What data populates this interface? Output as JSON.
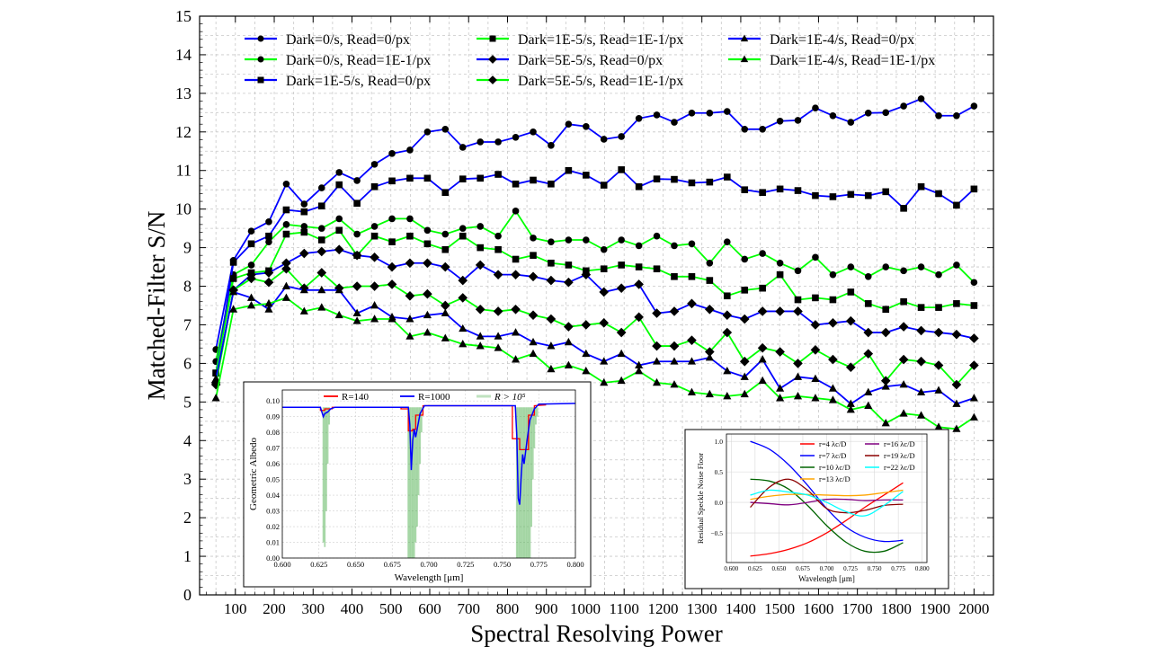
{
  "chart_data": [
    {
      "type": "line",
      "title": "",
      "xlabel": "Spectral Resolving Power",
      "ylabel": "Matched-Filter S/N",
      "xlim": [
        8,
        2050
      ],
      "ylim": [
        0,
        15
      ],
      "grid": true,
      "legend_placement": "top",
      "xticks": [
        100,
        200,
        300,
        400,
        500,
        600,
        700,
        800,
        900,
        1000,
        1100,
        1200,
        1300,
        1400,
        1500,
        1600,
        1700,
        1800,
        1900,
        2000
      ],
      "yticks": [
        0,
        1,
        2,
        3,
        4,
        5,
        6,
        7,
        8,
        9,
        10,
        11,
        12,
        13,
        14,
        15
      ],
      "x": [
        50,
        95,
        141,
        186,
        231,
        277,
        322,
        367,
        413,
        458,
        503,
        549,
        594,
        640,
        685,
        730,
        776,
        821,
        866,
        912,
        957,
        1002,
        1048,
        1093,
        1138,
        1184,
        1229,
        1274,
        1320,
        1365,
        1410,
        1456,
        1501,
        1547,
        1592,
        1637,
        1683,
        1728,
        1773,
        1819,
        1864,
        1909,
        1955,
        2000
      ],
      "series": [
        {
          "name": "Dark=0/s, Read=0/px",
          "color": "#0000ff",
          "marker": "circle",
          "values": [
            6.36,
            8.67,
            9.43,
            9.67,
            10.65,
            10.13,
            10.55,
            10.95,
            10.74,
            11.16,
            11.44,
            11.53,
            12.0,
            12.07,
            11.6,
            11.74,
            11.74,
            11.86,
            12.0,
            11.65,
            12.2,
            12.14,
            11.81,
            11.88,
            12.35,
            12.44,
            12.25,
            12.49,
            12.49,
            12.53,
            12.07,
            12.07,
            12.28,
            12.3,
            12.62,
            12.42,
            12.25,
            12.49,
            12.5,
            12.67,
            12.86,
            12.42,
            12.42,
            12.67
          ]
        },
        {
          "name": "Dark=0/s, Read=1E-1/px",
          "color": "#00ff00",
          "marker": "circle",
          "values": [
            6.05,
            8.3,
            8.55,
            9.15,
            9.6,
            9.55,
            9.5,
            9.75,
            9.35,
            9.55,
            9.75,
            9.75,
            9.45,
            9.35,
            9.5,
            9.55,
            9.3,
            9.95,
            9.25,
            9.15,
            9.2,
            9.2,
            8.95,
            9.2,
            9.05,
            9.3,
            9.05,
            9.1,
            8.6,
            9.15,
            8.7,
            8.85,
            8.6,
            8.4,
            8.75,
            8.3,
            8.5,
            8.25,
            8.5,
            8.4,
            8.5,
            8.3,
            8.55,
            8.1
          ]
        },
        {
          "name": "Dark=1E-5/s, Read=0/px",
          "color": "#0000ff",
          "marker": "square",
          "values": [
            5.75,
            8.62,
            9.1,
            9.3,
            9.98,
            9.93,
            10.08,
            10.63,
            10.15,
            10.58,
            10.73,
            10.8,
            10.8,
            10.43,
            10.78,
            10.8,
            10.9,
            10.65,
            10.75,
            10.65,
            11.0,
            10.88,
            10.62,
            11.02,
            10.58,
            10.78,
            10.77,
            10.68,
            10.7,
            10.83,
            10.5,
            10.43,
            10.52,
            10.48,
            10.35,
            10.32,
            10.38,
            10.35,
            10.45,
            10.02,
            10.58,
            10.4,
            10.1,
            10.52
          ]
        },
        {
          "name": "Dark=1E-5/s, Read=1E-1/px",
          "color": "#00ff00",
          "marker": "square",
          "values": [
            5.75,
            8.2,
            8.35,
            8.4,
            9.35,
            9.4,
            9.2,
            9.45,
            8.8,
            9.3,
            9.15,
            9.3,
            9.1,
            8.95,
            9.3,
            9.0,
            8.95,
            8.7,
            8.8,
            8.6,
            8.55,
            8.4,
            8.45,
            8.55,
            8.5,
            8.45,
            8.25,
            8.25,
            8.15,
            7.75,
            7.9,
            7.95,
            8.3,
            7.65,
            7.7,
            7.65,
            7.85,
            7.55,
            7.4,
            7.6,
            7.45,
            7.45,
            7.55,
            7.5
          ]
        },
        {
          "name": "Dark=5E-5/s, Read=0/px",
          "color": "#0000ff",
          "marker": "diamond",
          "values": [
            5.5,
            7.9,
            8.3,
            8.35,
            8.6,
            8.85,
            8.9,
            8.95,
            8.8,
            8.75,
            8.5,
            8.6,
            8.6,
            8.5,
            8.15,
            8.55,
            8.3,
            8.3,
            8.25,
            8.15,
            8.1,
            8.3,
            7.85,
            7.95,
            8.05,
            7.3,
            7.35,
            7.55,
            7.4,
            7.25,
            7.15,
            7.35,
            7.35,
            7.35,
            7.0,
            7.05,
            7.1,
            6.8,
            6.8,
            6.95,
            6.85,
            6.8,
            6.75,
            6.65
          ]
        },
        {
          "name": "Dark=5E-5/s, Read=1E-1/px",
          "color": "#00ff00",
          "marker": "diamond",
          "values": [
            5.45,
            7.9,
            8.2,
            8.1,
            8.45,
            7.95,
            8.35,
            7.95,
            8.0,
            8.0,
            8.05,
            7.75,
            7.8,
            7.5,
            7.7,
            7.4,
            7.35,
            7.4,
            7.25,
            7.15,
            6.95,
            7.0,
            7.05,
            6.8,
            7.2,
            6.45,
            6.45,
            6.6,
            6.3,
            6.8,
            6.05,
            6.4,
            6.3,
            6.0,
            6.35,
            6.1,
            5.9,
            6.25,
            5.55,
            6.1,
            6.05,
            5.95,
            5.45,
            5.95
          ]
        },
        {
          "name": "Dark=1E-4/s, Read=0/px",
          "color": "#0000ff",
          "marker": "triangle",
          "values": [
            5.6,
            7.85,
            7.7,
            7.4,
            8.0,
            7.9,
            7.9,
            7.9,
            7.3,
            7.5,
            7.2,
            7.15,
            7.25,
            7.3,
            6.9,
            6.7,
            6.7,
            6.8,
            6.55,
            6.45,
            6.55,
            6.25,
            6.05,
            6.25,
            5.95,
            6.05,
            6.05,
            6.05,
            6.15,
            5.8,
            5.65,
            6.1,
            5.35,
            5.65,
            5.6,
            5.35,
            4.95,
            5.25,
            5.4,
            5.45,
            5.25,
            5.3,
            4.95,
            5.1
          ]
        },
        {
          "name": "Dark=1E-4/s, Read=1E-1/px",
          "color": "#00ff00",
          "marker": "triangle",
          "values": [
            5.1,
            7.4,
            7.5,
            7.55,
            7.7,
            7.35,
            7.45,
            7.25,
            7.1,
            7.15,
            7.15,
            6.7,
            6.8,
            6.65,
            6.5,
            6.45,
            6.4,
            6.1,
            6.25,
            5.85,
            5.95,
            5.8,
            5.5,
            5.55,
            5.8,
            5.5,
            5.45,
            5.25,
            5.2,
            5.15,
            5.2,
            5.55,
            5.1,
            5.15,
            5.1,
            5.05,
            4.8,
            4.9,
            4.45,
            4.7,
            4.65,
            4.35,
            4.3,
            4.6
          ]
        }
      ]
    },
    {
      "type": "line",
      "title": "",
      "xlabel": "Wavelength [μm]",
      "ylabel": "Geometric Albedo",
      "xlim": [
        0.6,
        0.8
      ],
      "ylim": [
        0.0,
        0.107
      ],
      "grid": true,
      "legend_placement": "top",
      "xticks": [
        "0.600",
        "0.625",
        "0.650",
        "0.675",
        "0.700",
        "0.725",
        "0.750",
        "0.775",
        "0.800"
      ],
      "yticks": [
        "0.00",
        "0.01",
        "0.02",
        "0.03",
        "0.04",
        "0.05",
        "0.06",
        "0.07",
        "0.08",
        "0.09",
        "0.10"
      ],
      "series": [
        {
          "name": "R=140",
          "color": "#ff0000",
          "points": [
            [
              0.6,
              0.096
            ],
            [
              0.626,
              0.096
            ],
            [
              0.626,
              0.094
            ],
            [
              0.629,
              0.094
            ],
            [
              0.629,
              0.095
            ],
            [
              0.634,
              0.095
            ],
            [
              0.634,
              0.096
            ],
            [
              0.681,
              0.096
            ],
            [
              0.681,
              0.095
            ],
            [
              0.686,
              0.095
            ],
            [
              0.686,
              0.081
            ],
            [
              0.689,
              0.081
            ],
            [
              0.689,
              0.082
            ],
            [
              0.691,
              0.082
            ],
            [
              0.691,
              0.091
            ],
            [
              0.696,
              0.091
            ],
            [
              0.696,
              0.097
            ],
            [
              0.757,
              0.097
            ],
            [
              0.757,
              0.076
            ],
            [
              0.762,
              0.076
            ],
            [
              0.762,
              0.069
            ],
            [
              0.768,
              0.069
            ],
            [
              0.768,
              0.091
            ],
            [
              0.772,
              0.091
            ],
            [
              0.772,
              0.097
            ],
            [
              0.78,
              0.0975
            ]
          ]
        },
        {
          "name": "R=1000",
          "color": "#0000ff",
          "points": [
            [
              0.6,
              0.096
            ],
            [
              0.626,
              0.096
            ],
            [
              0.627,
              0.093
            ],
            [
              0.628,
              0.09
            ],
            [
              0.629,
              0.092
            ],
            [
              0.631,
              0.093
            ],
            [
              0.633,
              0.095
            ],
            [
              0.636,
              0.096
            ],
            [
              0.686,
              0.096
            ],
            [
              0.687,
              0.085
            ],
            [
              0.688,
              0.056
            ],
            [
              0.689,
              0.075
            ],
            [
              0.69,
              0.082
            ],
            [
              0.691,
              0.077
            ],
            [
              0.692,
              0.082
            ],
            [
              0.694,
              0.092
            ],
            [
              0.697,
              0.097
            ],
            [
              0.759,
              0.097
            ],
            [
              0.76,
              0.078
            ],
            [
              0.761,
              0.038
            ],
            [
              0.762,
              0.034
            ],
            [
              0.763,
              0.052
            ],
            [
              0.764,
              0.066
            ],
            [
              0.765,
              0.06
            ],
            [
              0.767,
              0.075
            ],
            [
              0.769,
              0.088
            ],
            [
              0.772,
              0.095
            ],
            [
              0.775,
              0.098
            ],
            [
              0.8,
              0.0985
            ]
          ]
        },
        {
          "name": "R > 10⁵",
          "color": "#2ca02c",
          "spikes": [
            [
              0.628,
              0.01
            ],
            [
              0.629,
              0.007
            ],
            [
              0.63,
              0.03
            ],
            [
              0.631,
              0.06
            ],
            [
              0.632,
              0.085
            ],
            [
              0.686,
              0.0
            ],
            [
              0.687,
              0.0
            ],
            [
              0.688,
              0.0
            ],
            [
              0.689,
              0.0
            ],
            [
              0.69,
              0.0
            ],
            [
              0.691,
              0.01
            ],
            [
              0.692,
              0.02
            ],
            [
              0.693,
              0.04
            ],
            [
              0.694,
              0.06
            ],
            [
              0.695,
              0.08
            ],
            [
              0.76,
              0.0
            ],
            [
              0.761,
              0.0
            ],
            [
              0.762,
              0.0
            ],
            [
              0.763,
              0.0
            ],
            [
              0.764,
              0.0
            ],
            [
              0.765,
              0.0
            ],
            [
              0.766,
              0.0
            ],
            [
              0.767,
              0.0
            ],
            [
              0.768,
              0.0
            ],
            [
              0.769,
              0.0
            ],
            [
              0.77,
              0.02
            ],
            [
              0.771,
              0.05
            ],
            [
              0.772,
              0.07
            ],
            [
              0.773,
              0.085
            ],
            [
              0.774,
              0.09
            ]
          ]
        }
      ]
    },
    {
      "type": "line",
      "title": "",
      "xlabel": "Wavelength [μm]",
      "ylabel": "Residual Speckle Noise Floor",
      "xlim": [
        0.595,
        0.805
      ],
      "ylim": [
        -0.985,
        1.12
      ],
      "grid": true,
      "legend_placement": "top-right",
      "xticks": [
        "0.600",
        "0.625",
        "0.650",
        "0.675",
        "0.700",
        "0.725",
        "0.750",
        "0.775",
        "0.800"
      ],
      "yticks": [
        "1.0",
        "0.5",
        "0.0",
        "−0.5"
      ],
      "ytick_values": [
        1.0,
        0.5,
        0.0,
        -0.5
      ],
      "x": [
        0.62,
        0.64,
        0.66,
        0.68,
        0.7,
        0.72,
        0.74,
        0.76,
        0.78
      ],
      "series": [
        {
          "name": "r=4 λc/D",
          "color": "#ff0000",
          "values": [
            -0.88,
            -0.84,
            -0.77,
            -0.66,
            -0.5,
            -0.3,
            -0.08,
            0.12,
            0.32
          ]
        },
        {
          "name": "r=7 λc/D",
          "color": "#0000ff",
          "values": [
            1.0,
            0.87,
            0.62,
            0.28,
            -0.1,
            -0.4,
            -0.57,
            -0.64,
            -0.62
          ]
        },
        {
          "name": "r=10 λc/D",
          "color": "#006400",
          "values": [
            0.38,
            0.35,
            0.22,
            -0.05,
            -0.38,
            -0.65,
            -0.8,
            -0.8,
            -0.66
          ]
        },
        {
          "name": "r=13 λc/D",
          "color": "#ffa500",
          "values": [
            0.05,
            0.1,
            0.13,
            0.13,
            0.12,
            0.11,
            0.12,
            0.16,
            0.2
          ]
        },
        {
          "name": "r=16 λc/D",
          "color": "#800080",
          "values": [
            0.0,
            -0.02,
            -0.04,
            0.0,
            0.05,
            0.05,
            0.03,
            0.04,
            0.04
          ]
        },
        {
          "name": "r=19 λc/D",
          "color": "#8b0000",
          "values": [
            -0.08,
            0.25,
            0.38,
            0.2,
            -0.1,
            -0.17,
            -0.13,
            -0.05,
            -0.03
          ]
        },
        {
          "name": "r=22 λc/D",
          "color": "#00ffff",
          "values": [
            0.12,
            0.2,
            0.17,
            0.12,
            0.0,
            -0.15,
            -0.22,
            -0.05,
            0.18
          ]
        }
      ]
    }
  ]
}
